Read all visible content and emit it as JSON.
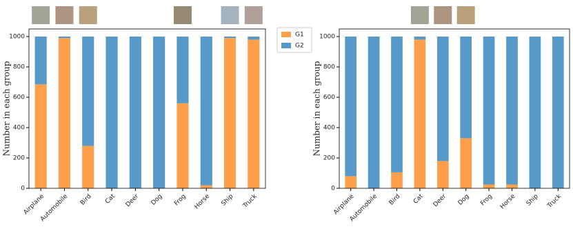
{
  "chart_data": [
    {
      "type": "stacked_bar",
      "y_label": "Number in each group",
      "categories": [
        "Airplane",
        "Automobile",
        "Bird",
        "Cat",
        "Deer",
        "Dog",
        "Frog",
        "Horse",
        "Ship",
        "Truck"
      ],
      "series": [
        {
          "name": "G1",
          "color": "#fd9f4b",
          "values": [
            685,
            990,
            280,
            0,
            0,
            0,
            560,
            20,
            990,
            980
          ]
        },
        {
          "name": "G2",
          "color": "#5799c9",
          "values": [
            315,
            10,
            720,
            1000,
            1000,
            1000,
            440,
            980,
            10,
            20
          ]
        }
      ],
      "ylim": [
        0,
        1050
      ],
      "yticks": [
        0,
        200,
        400,
        600,
        800,
        1000
      ],
      "legend": "outside right"
    },
    {
      "type": "stacked_bar",
      "y_label": "Number in each group",
      "categories": [
        "Airplane",
        "Automobile",
        "Bird",
        "Cat",
        "Deer",
        "Dog",
        "Frog",
        "Horse",
        "Ship",
        "Truck"
      ],
      "series": [
        {
          "color": "#fd9f4b",
          "values": [
            80,
            0,
            105,
            980,
            180,
            330,
            25,
            25,
            0,
            0
          ]
        },
        {
          "color": "#5799c9",
          "values": [
            920,
            1000,
            895,
            20,
            820,
            670,
            975,
            975,
            1000,
            1000
          ]
        }
      ],
      "ylim": [
        0,
        1050
      ],
      "yticks": [
        0,
        200,
        400,
        600,
        800,
        1000
      ]
    }
  ]
}
